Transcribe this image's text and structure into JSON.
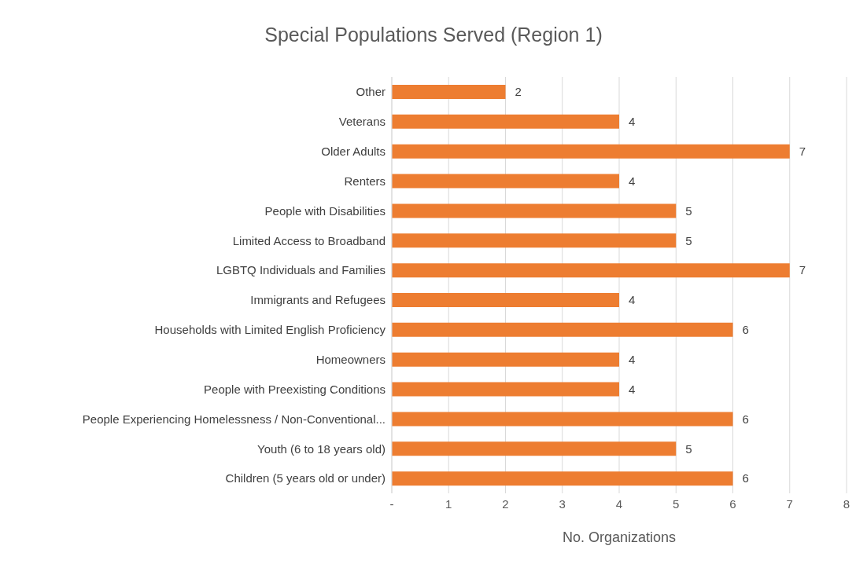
{
  "chart_data": {
    "type": "bar",
    "orientation": "horizontal",
    "title": "Special Populations Served (Region 1)",
    "xlabel": "No. Organizations",
    "categories": [
      "Other",
      "Veterans",
      "Older Adults",
      "Renters",
      "People with Disabilities",
      "Limited Access to Broadband",
      "LGBTQ Individuals and Families",
      "Immigrants and Refugees",
      "Households with Limited English Proficiency",
      "Homeowners",
      "People with Preexisting Conditions",
      "People Experiencing Homelessness / Non-Conventional...",
      "Youth (6 to 18 years old)",
      "Children (5 years old or under)"
    ],
    "values": [
      2,
      4,
      7,
      4,
      5,
      5,
      7,
      4,
      6,
      4,
      4,
      6,
      5,
      6
    ],
    "color": "#ed7d31",
    "data_labels": true,
    "grid": "x",
    "legend": false,
    "xlim": [
      0,
      8
    ],
    "xticks": [
      {
        "value": 0,
        "label": "-"
      },
      1,
      2,
      3,
      4,
      5,
      6,
      7,
      8
    ]
  }
}
